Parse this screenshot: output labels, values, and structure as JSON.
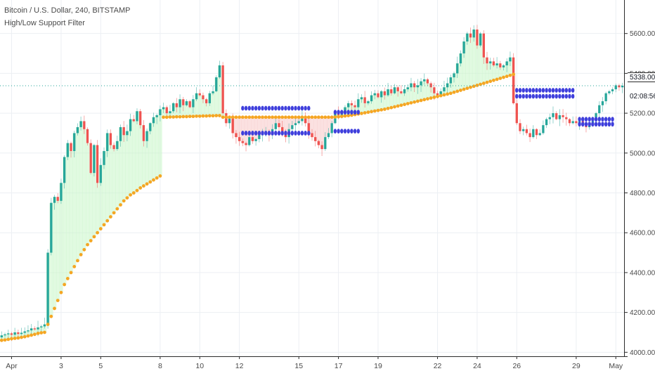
{
  "legend": {
    "symbol": "Bitcoin / U.S. Dollar, 240, BITSTAMP",
    "indicator": "High/Low Support Filter"
  },
  "chart_data": {
    "type": "candlestick",
    "title": "Bitcoin / U.S. Dollar, 240, BITSTAMP",
    "subtitle": "High/Low Support Filter",
    "xlabel": "",
    "ylabel": "",
    "ylim": [
      3980,
      5680
    ],
    "y_ticks": [
      4000,
      4200,
      4400,
      4600,
      4800,
      5000,
      5200,
      5400,
      5600
    ],
    "y_tick_labels": [
      "4000.00",
      "4200.00",
      "4400.00",
      "4600.00",
      "4800.00",
      "5000.00",
      "5200.00",
      "5400.00",
      "5600.00"
    ],
    "x_ticks": [
      {
        "label": "Apr",
        "bar": 3
      },
      {
        "label": "3",
        "bar": 18
      },
      {
        "label": "5",
        "bar": 30
      },
      {
        "label": "8",
        "bar": 48
      },
      {
        "label": "10",
        "bar": 60
      },
      {
        "label": "12",
        "bar": 72
      },
      {
        "label": "15",
        "bar": 90
      },
      {
        "label": "17",
        "bar": 102
      },
      {
        "label": "19",
        "bar": 114
      },
      {
        "label": "22",
        "bar": 132
      },
      {
        "label": "24",
        "bar": 144
      },
      {
        "label": "26",
        "bar": 156
      },
      {
        "label": "29",
        "bar": 174
      },
      {
        "label": "May",
        "bar": 186
      }
    ],
    "last_price": "5338.00",
    "countdown": "02:08:56",
    "grid": true,
    "legend_position": "top-left",
    "colors": {
      "up": "#26a69a",
      "down": "#ef5350",
      "support": "#f5a623",
      "filter": "#3f3fdc",
      "green_fill": "#c8f5c8",
      "red_fill": "#f8c8c8"
    },
    "closes": [
      4085,
      4090,
      4095,
      4088,
      4100,
      4092,
      4098,
      4105,
      4110,
      4120,
      4115,
      4125,
      4130,
      4140,
      4500,
      4750,
      4780,
      4760,
      4850,
      4980,
      5050,
      5010,
      5100,
      5130,
      5160,
      5120,
      5050,
      4900,
      5040,
      4850,
      4940,
      5010,
      5100,
      5040,
      5020,
      5060,
      5130,
      5090,
      5110,
      5170,
      5160,
      5210,
      5140,
      5060,
      5110,
      5150,
      5180,
      5190,
      5220,
      5230,
      5200,
      5210,
      5250,
      5230,
      5270,
      5240,
      5260,
      5230,
      5270,
      5300,
      5290,
      5270,
      5250,
      5300,
      5310,
      5380,
      5440,
      5200,
      5150,
      5180,
      5100,
      5080,
      5060,
      5050,
      5040,
      5080,
      5060,
      5070,
      5090,
      5100,
      5110,
      5090,
      5120,
      5150,
      5130,
      5100,
      5080,
      5120,
      5140,
      5150,
      5160,
      5180,
      5150,
      5100,
      5080,
      5060,
      5040,
      5020,
      5080,
      5100,
      5150,
      5200,
      5190,
      5210,
      5230,
      5250,
      5240,
      5230,
      5270,
      5280,
      5250,
      5260,
      5290,
      5300,
      5280,
      5310,
      5290,
      5320,
      5300,
      5330,
      5310,
      5300,
      5320,
      5330,
      5350,
      5330,
      5340,
      5360,
      5370,
      5350,
      5330,
      5300,
      5290,
      5310,
      5330,
      5350,
      5380,
      5400,
      5450,
      5500,
      5560,
      5600,
      5580,
      5620,
      5540,
      5600,
      5480,
      5450,
      5460,
      5440,
      5450,
      5430,
      5440,
      5460,
      5480,
      5250,
      5150,
      5110,
      5120,
      5100,
      5080,
      5120,
      5090,
      5100,
      5140,
      5170,
      5180,
      5200,
      5170,
      5190,
      5180,
      5170,
      5150,
      5160,
      5150,
      5160,
      5140,
      5130,
      5150,
      5160,
      5200,
      5240,
      5260,
      5300,
      5310,
      5320,
      5340,
      5330,
      5338
    ],
    "support": [
      4060,
      4062,
      4065,
      4068,
      4070,
      4072,
      4075,
      4078,
      4082,
      4086,
      4090,
      4095,
      4098,
      4100,
      4140,
      4180,
      4220,
      4260,
      4300,
      4340,
      4370,
      4400,
      4430,
      4460,
      4490,
      4515,
      4540,
      4560,
      4580,
      4600,
      4620,
      4640,
      4660,
      4680,
      4700,
      4720,
      4740,
      4760,
      4775,
      4790,
      4800,
      4812,
      4825,
      4835,
      4845,
      4855,
      4865,
      4875,
      4885,
      5180,
      5180,
      5181,
      5181,
      5182,
      5182,
      5183,
      5183,
      5184,
      5184,
      5185,
      5185,
      5186,
      5186,
      5187,
      5187,
      5188,
      5188,
      5180,
      5180,
      5180,
      5180,
      5180,
      5180,
      5180,
      5180,
      5180,
      5180,
      5180,
      5180,
      5180,
      5180,
      5180,
      5180,
      5180,
      5180,
      5180,
      5180,
      5180,
      5180,
      5180,
      5180,
      5180,
      5180,
      5180,
      5180,
      5180,
      5180,
      5180,
      5180,
      5180,
      5180,
      5181,
      5182,
      5184,
      5186,
      5188,
      5190,
      5193,
      5196,
      5199,
      5202,
      5205,
      5208,
      5211,
      5214,
      5217,
      5220,
      5224,
      5228,
      5232,
      5236,
      5240,
      5244,
      5248,
      5252,
      5256,
      5260,
      5264,
      5268,
      5272,
      5276,
      5280,
      5284,
      5288,
      5292,
      5296,
      5300,
      5305,
      5310,
      5315,
      5320,
      5325,
      5330,
      5335,
      5340,
      5345,
      5350,
      5355,
      5360,
      5365,
      5370,
      5375,
      5380,
      5385,
      5390,
      5395,
      null,
      null,
      null,
      null,
      null,
      null,
      null,
      null,
      null,
      null,
      null,
      null,
      null,
      null,
      null,
      null,
      null,
      null,
      null,
      null,
      null,
      null,
      null,
      null,
      null,
      null,
      null,
      null,
      null,
      null,
      null,
      null,
      null,
      null,
      null,
      null,
      null,
      null,
      null,
      null
    ],
    "filter_high": [
      {
        "from": 73,
        "to": 93,
        "value": 5225
      },
      {
        "from": 101,
        "to": 108,
        "value": 5205
      },
      {
        "from": 156,
        "to": 173,
        "value": 5315
      },
      {
        "from": 175,
        "to": 185,
        "value": 5170
      }
    ],
    "filter_low": [
      {
        "from": 73,
        "to": 93,
        "value": 5100
      },
      {
        "from": 101,
        "to": 108,
        "value": 5110
      },
      {
        "from": 156,
        "to": 173,
        "value": 5285
      },
      {
        "from": 175,
        "to": 185,
        "value": 5145
      }
    ]
  }
}
